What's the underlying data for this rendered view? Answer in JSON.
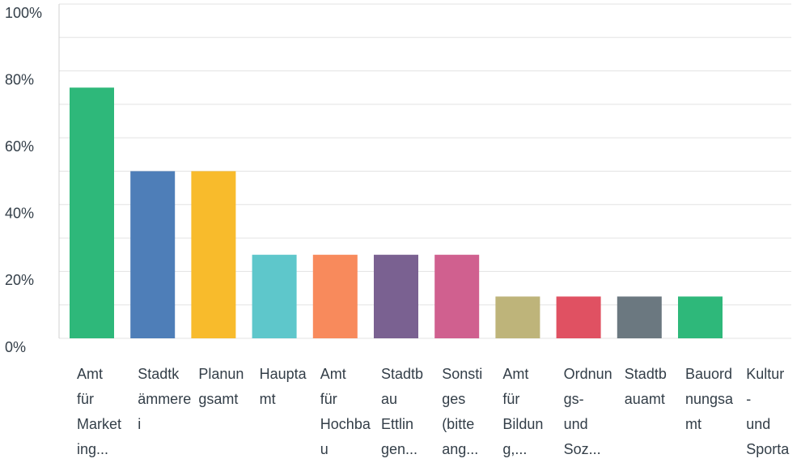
{
  "chart_data": {
    "type": "bar",
    "categories": [
      [
        "Amt",
        "für",
        "Market",
        "ing..."
      ],
      [
        "Stadtk",
        "ämmere",
        "i"
      ],
      [
        "Planun",
        "gsamt"
      ],
      [
        "Haupta",
        "mt"
      ],
      [
        "Amt",
        "für",
        "Hochba",
        "u"
      ],
      [
        "Stadtb",
        "au",
        "Ettlin",
        "gen..."
      ],
      [
        "Sonsti",
        "ges",
        "(bitte",
        "ang..."
      ],
      [
        "Amt",
        "für",
        "Bildun",
        "g,..."
      ],
      [
        "Ordnun",
        "gs-",
        "und",
        "Soz..."
      ],
      [
        "Stadtb",
        "auamt"
      ],
      [
        "Bauord",
        "nungsa",
        "mt"
      ],
      [
        "Kultur",
        "-",
        "und",
        "Sporta"
      ]
    ],
    "values": [
      75,
      50,
      50,
      25,
      25,
      25,
      25,
      12.5,
      12.5,
      12.5,
      12.5,
      0
    ],
    "colors": [
      "#2eb87a",
      "#4e7eb8",
      "#f8bb2c",
      "#5ec7cb",
      "#f88a5c",
      "#7a6191",
      "#d0608f",
      "#beb47a",
      "#e05162",
      "#6b7880",
      "#2eb87a",
      "#2eb87a"
    ],
    "ylim": [
      0,
      100
    ],
    "yticks": [
      {
        "value": 0,
        "label": "0%"
      },
      {
        "value": 20,
        "label": "20%"
      },
      {
        "value": 40,
        "label": "40%"
      },
      {
        "value": 60,
        "label": "60%"
      },
      {
        "value": 80,
        "label": "80%"
      },
      {
        "value": 100,
        "label": "100%"
      }
    ],
    "grid_ticks": [
      0,
      10,
      20,
      30,
      40,
      50,
      60,
      70,
      80,
      90,
      100
    ],
    "grid": true
  }
}
